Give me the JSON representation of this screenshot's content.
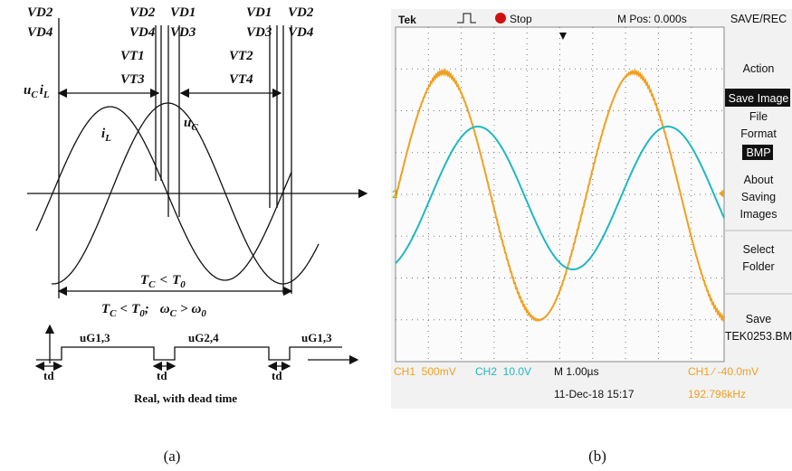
{
  "panel_a": {
    "top_labels": [
      [
        "VD2",
        "VD4"
      ],
      [
        "VD2",
        "VD4"
      ],
      [
        "VD1",
        "VD3"
      ],
      [
        "VD1",
        "VD3"
      ],
      [
        "VD2",
        "VD4"
      ]
    ],
    "vt_labels": [
      "VT1",
      "VT3",
      "VT2",
      "VT4"
    ],
    "axis_label": [
      {
        "base": "u",
        "sub": "C"
      },
      {
        "base": "i",
        "sub": "L"
      }
    ],
    "curve_labels": [
      {
        "base": "i",
        "sub": "L"
      },
      {
        "base": "u",
        "sub": "C"
      }
    ],
    "period_label": {
      "t1": "T",
      "s1": "C",
      "rel": "<",
      "t2": "T",
      "s2": "0"
    },
    "condition": {
      "t1": "T",
      "s1": "C",
      "rel1": "<",
      "t2": "T",
      "s2": "0",
      "sep": ";",
      "w1": "ω",
      "ws1": "C",
      "rel2": ">",
      "w2": "ω",
      "ws2": "0"
    },
    "gate_labels": [
      "uG1,3",
      "uG2,4",
      "uG1,3"
    ],
    "dead_time_labels": [
      "td",
      "td",
      "td"
    ],
    "note": "Real, with dead time",
    "caption": "(a)"
  },
  "panel_b": {
    "brand": "Tek",
    "status": "Stop",
    "position": "M Pos: 0.000s",
    "menu_title": "SAVE/REC",
    "menu": [
      [
        "Action",
        "Save Image"
      ],
      [
        "File",
        "Format",
        "BMP"
      ],
      [
        "About",
        "Saving",
        "Images"
      ],
      [
        "Select",
        "Folder"
      ],
      [
        "Save",
        "TEK0253.BM"
      ]
    ],
    "ch2_marker": "2",
    "readouts": {
      "ch1": "CH1  500mV",
      "ch2": "CH2  10.0V",
      "timebase": "M 1.00µs",
      "trigger": "CH1 ∕ -40.0mV",
      "date": "11-Dec-18 15:17",
      "frequency": "192.796kHz"
    },
    "caption": "(b)"
  }
}
